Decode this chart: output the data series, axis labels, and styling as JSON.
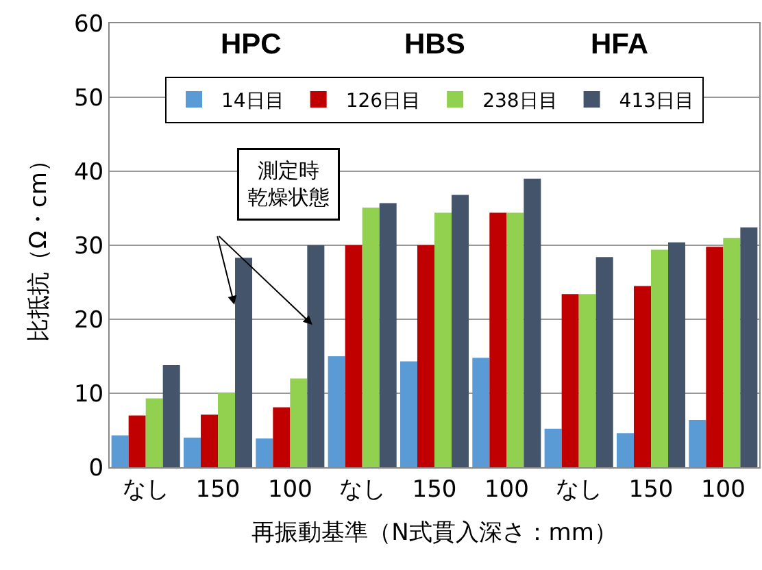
{
  "chart_data": {
    "type": "bar",
    "xlabel": "再振動基準（N式貫入深さ：mm）",
    "ylabel": "比抵抗（Ω・cm）",
    "categories": [
      "なし",
      "150",
      "100",
      "なし",
      "150",
      "100",
      "なし",
      "150",
      "100"
    ],
    "series": [
      {
        "name": "14日目",
        "color": "#5b9bd5",
        "values": [
          4.3,
          4.0,
          3.9,
          15.0,
          14.3,
          14.8,
          5.2,
          4.6,
          6.4
        ]
      },
      {
        "name": "126日目",
        "color": "#c00000",
        "values": [
          7.0,
          7.1,
          8.1,
          30.0,
          30.0,
          34.4,
          23.4,
          24.5,
          29.8
        ]
      },
      {
        "name": "238日目",
        "color": "#92d050",
        "values": [
          9.3,
          10.0,
          12.0,
          35.1,
          34.4,
          34.4,
          23.4,
          29.4,
          31.0
        ]
      },
      {
        "name": "413日目",
        "color": "#44546a",
        "values": [
          13.8,
          28.3,
          30.0,
          35.7,
          36.8,
          39.0,
          28.4,
          30.4,
          32.4
        ]
      }
    ],
    "annotations": [
      "HPC",
      "HBS",
      "HFA",
      "測定時乾燥状態"
    ],
    "ylim": [
      0,
      60
    ],
    "yticks": [
      0,
      10,
      20,
      30,
      40,
      50,
      60
    ],
    "grid": "y",
    "legend": "top"
  }
}
